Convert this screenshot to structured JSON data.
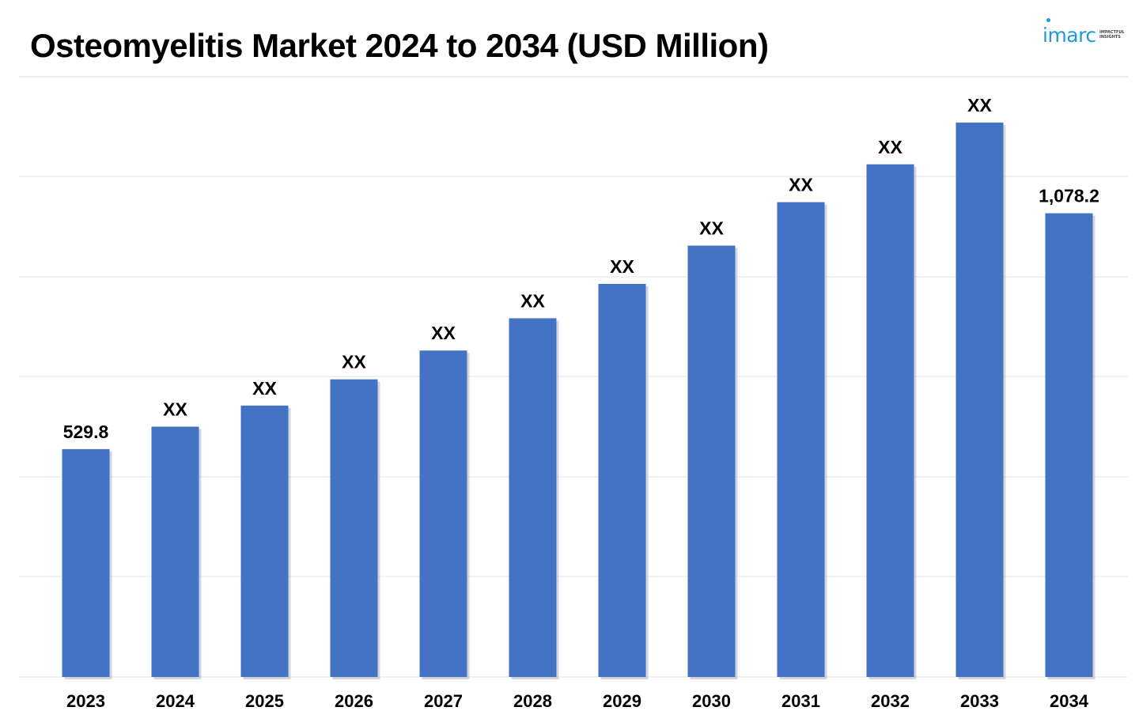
{
  "page": {
    "title": "Osteomyelitis Market 2024 to 2034 (USD Million)",
    "brand": {
      "name": "imarc",
      "tagline": "IMPACTFUL INSIGHTS",
      "color": "#1d9bd8"
    }
  },
  "chart_data": {
    "type": "bar",
    "title": "Osteomyelitis Market 2024 to 2034 (USD Million)",
    "xlabel": "",
    "ylabel": "",
    "categories": [
      "2023",
      "2024",
      "2025",
      "2026",
      "2027",
      "2028",
      "2029",
      "2030",
      "2031",
      "2032",
      "2033",
      "2034"
    ],
    "values": [
      529.8,
      582,
      631,
      692,
      759,
      834,
      914,
      1003,
      1104,
      1192,
      1289,
      1078.2
    ],
    "value_labels": [
      "529.8",
      "XX",
      "XX",
      "XX",
      "XX",
      "XX",
      "XX",
      "XX",
      "XX",
      "XX",
      "XX",
      "1,078.2"
    ],
    "bar_color": "#4472c4",
    "grid": true,
    "legend": "none"
  }
}
